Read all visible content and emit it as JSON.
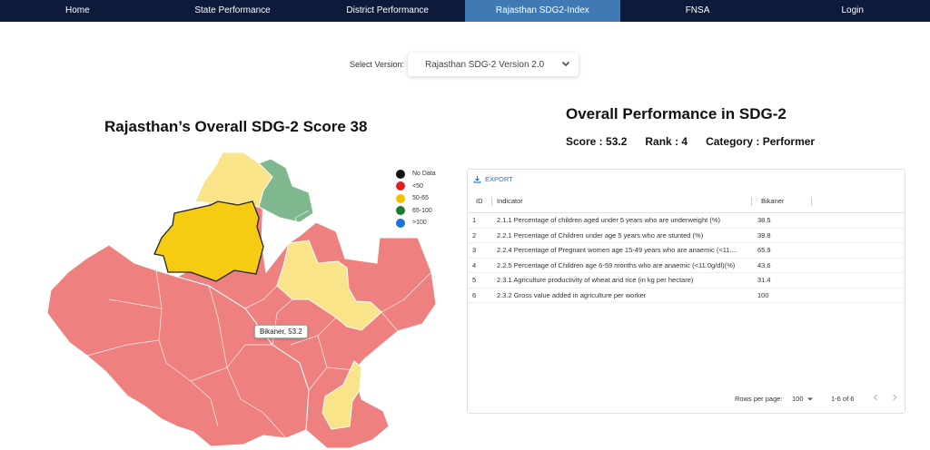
{
  "nav": {
    "items": [
      {
        "label": "Home"
      },
      {
        "label": "State Performance"
      },
      {
        "label": "District Performance"
      },
      {
        "label": "Rajasthan SDG2-Index"
      },
      {
        "label": "FNSA"
      },
      {
        "label": "Login"
      }
    ],
    "active_index": 3,
    "colors": {
      "bar": "#0e1a3a",
      "active": "#3f7ab5"
    }
  },
  "version": {
    "label": "Select Version:",
    "selected": "Rajasthan SDG-2 Version 2.0",
    "icon": "chevron-down-icon"
  },
  "map": {
    "title": "Rajasthan’s Overall SDG-2 Score 38",
    "legend": [
      {
        "label": "No Data",
        "color": "#111111"
      },
      {
        "label": "<50",
        "color": "#e02020"
      },
      {
        "label": "50-65",
        "color": "#f2c200"
      },
      {
        "label": "65-100",
        "color": "#1a7a2e"
      },
      {
        "label": ">100",
        "color": "#1a73d9"
      }
    ],
    "region_colors": {
      "below_50": "#ef8080",
      "50_65": "#fae48a",
      "65_100": "#7fb78e",
      "selected": "#f5cc12"
    },
    "tooltip": "Bikaner, 53.2"
  },
  "performance": {
    "title": "Overall Performance in SDG-2",
    "score": "Score : 53.2",
    "rank": "Rank : 4",
    "category": "Category : Performer"
  },
  "table": {
    "export_label": "EXPORT",
    "columns": [
      "ID",
      "Indicator",
      "Bikaner"
    ],
    "rows": [
      {
        "id": "1",
        "indicator": "2.1.1 Percentage of children aged under 5 years who are underweight (%)",
        "value": "38.5"
      },
      {
        "id": "2",
        "indicator": "2.2.1 Percentage of Children under age 5 years who are stunted (%)",
        "value": "39.8"
      },
      {
        "id": "3",
        "indicator": "2.2.4 Percentage of Pregnant women age 15-49 years who are anaemic (<11....",
        "value": "65.9"
      },
      {
        "id": "4",
        "indicator": "2.2.5 Percentage of Children age 6-59 months who are anaemic (<11.0g/dl)(%)",
        "value": "43.6"
      },
      {
        "id": "5",
        "indicator": "2.3.1 Agriculture productivity of wheat and rice (in kg per hectare)",
        "value": "31.4"
      },
      {
        "id": "6",
        "indicator": "2.3.2 Gross value added in agriculture per worker",
        "value": "100"
      }
    ],
    "rows_per_page_label": "Rows per page:",
    "rows_per_page_value": "100",
    "range_label": "1-6 of 6"
  }
}
